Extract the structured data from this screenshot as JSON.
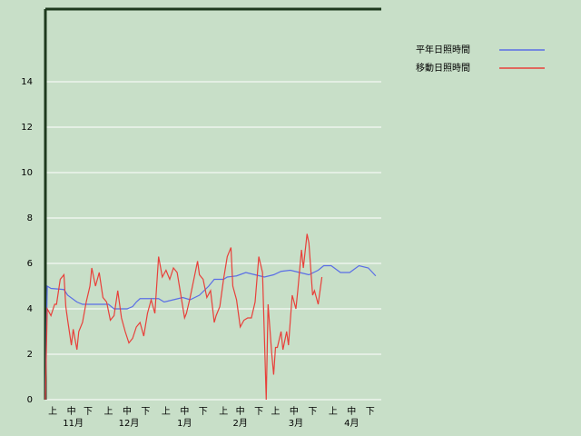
{
  "chart_data": {
    "type": "line",
    "xlim": [
      0,
      181
    ],
    "ylim": [
      0,
      17.2
    ],
    "yticks": [
      0,
      2,
      4,
      6,
      8,
      10,
      12,
      14
    ],
    "xticks": [
      {
        "value": 4,
        "label": "上"
      },
      {
        "value": 14,
        "label": "中"
      },
      {
        "value": 23,
        "label": "下"
      },
      {
        "value": 34,
        "label": "上"
      },
      {
        "value": 44,
        "label": "中"
      },
      {
        "value": 54,
        "label": "下"
      },
      {
        "value": 65,
        "label": "上"
      },
      {
        "value": 75,
        "label": "中"
      },
      {
        "value": 85,
        "label": "下"
      },
      {
        "value": 96,
        "label": "上"
      },
      {
        "value": 105,
        "label": "中"
      },
      {
        "value": 115,
        "label": "下"
      },
      {
        "value": 124,
        "label": "上"
      },
      {
        "value": 134,
        "label": "中"
      },
      {
        "value": 144,
        "label": "下"
      },
      {
        "value": 155,
        "label": "上"
      },
      {
        "value": 165,
        "label": "中"
      },
      {
        "value": 175,
        "label": "下"
      }
    ],
    "month_labels": [
      {
        "value": 15,
        "label": "11月"
      },
      {
        "value": 45,
        "label": "12月"
      },
      {
        "value": 75,
        "label": "1月"
      },
      {
        "value": 105,
        "label": "2月"
      },
      {
        "value": 135,
        "label": "3月"
      },
      {
        "value": 165,
        "label": "4月"
      }
    ],
    "grid": true,
    "legend": "right",
    "series": [
      {
        "name": "平年日照時間",
        "color": "#5a6ee6",
        "x": [
          0,
          1,
          3,
          10,
          12,
          17,
          20,
          34,
          37,
          44,
          47,
          49,
          51,
          61,
          64,
          69,
          74,
          78,
          83,
          88,
          91,
          96,
          98,
          103,
          108,
          113,
          118,
          123,
          127,
          132,
          137,
          142,
          147,
          150,
          154,
          159,
          164,
          169,
          174,
          178
        ],
        "values": [
          0,
          5.0,
          4.9,
          4.85,
          4.6,
          4.3,
          4.2,
          4.2,
          4.0,
          4.0,
          4.1,
          4.3,
          4.45,
          4.45,
          4.3,
          4.4,
          4.5,
          4.4,
          4.6,
          5.0,
          5.3,
          5.3,
          5.4,
          5.45,
          5.6,
          5.5,
          5.4,
          5.5,
          5.65,
          5.7,
          5.6,
          5.5,
          5.7,
          5.9,
          5.9,
          5.6,
          5.6,
          5.9,
          5.8,
          5.45
        ]
      },
      {
        "name": "移動日照時間",
        "color": "#e8403a",
        "x": [
          0,
          1,
          3,
          5,
          6,
          8,
          10,
          11,
          12,
          14,
          15,
          17,
          18,
          20,
          22,
          24,
          25,
          27,
          29,
          31,
          33,
          35,
          37,
          39,
          41,
          43,
          45,
          47,
          49,
          51,
          53,
          55,
          57,
          59,
          61,
          63,
          65,
          67,
          69,
          71,
          73,
          75,
          76,
          78,
          80,
          82,
          83,
          85,
          87,
          89,
          91,
          92,
          94,
          96,
          98,
          100,
          101,
          103,
          105,
          107,
          109,
          111,
          113,
          115,
          117,
          119,
          120,
          122,
          123,
          124,
          125,
          127,
          128,
          130,
          131,
          133,
          135,
          136,
          138,
          139,
          141,
          142,
          144,
          145,
          147,
          149
        ],
        "values": [
          0,
          4.0,
          3.7,
          4.2,
          4.2,
          5.3,
          5.5,
          4.1,
          3.5,
          2.4,
          3.1,
          2.2,
          3.0,
          3.4,
          4.3,
          5.0,
          5.8,
          5.0,
          5.6,
          4.5,
          4.3,
          3.5,
          3.7,
          4.8,
          3.6,
          3.0,
          2.5,
          2.7,
          3.2,
          3.4,
          2.8,
          3.8,
          4.4,
          3.8,
          6.3,
          5.4,
          5.7,
          5.3,
          5.8,
          5.6,
          4.6,
          3.6,
          3.8,
          4.5,
          5.3,
          6.1,
          5.5,
          5.3,
          4.5,
          4.8,
          3.4,
          3.7,
          4.1,
          5.3,
          6.3,
          6.7,
          5.0,
          4.4,
          3.2,
          3.5,
          3.6,
          3.6,
          4.3,
          6.3,
          5.6,
          0,
          4.2,
          2.0,
          1.1,
          2.3,
          2.3,
          3.0,
          2.2,
          3.0,
          2.4,
          4.6,
          4.0,
          4.8,
          6.6,
          5.8,
          7.3,
          6.9,
          4.6,
          4.8,
          4.2,
          5.4
        ]
      }
    ]
  }
}
